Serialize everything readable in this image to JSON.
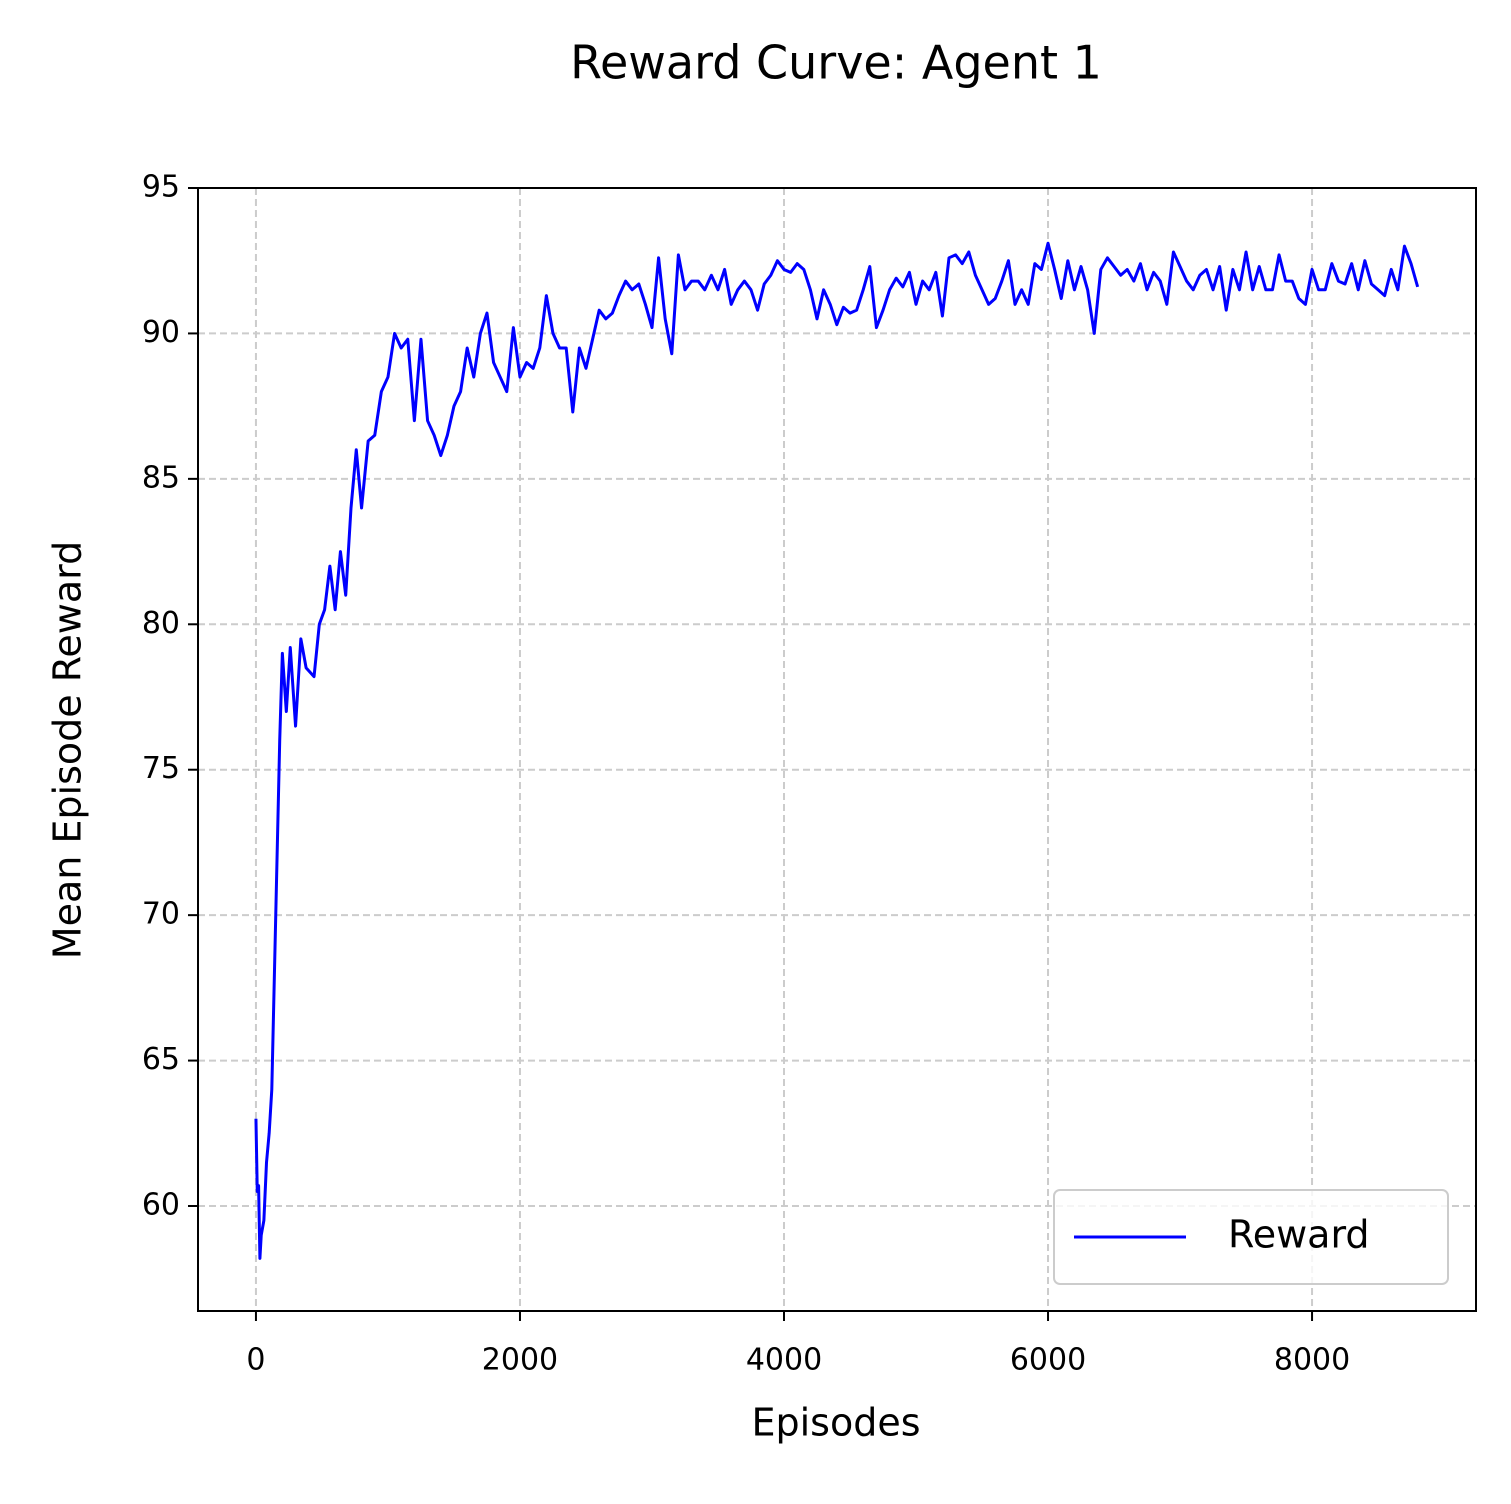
{
  "chart_data": {
    "type": "line",
    "title": "Reward Curve: Agent 1",
    "xlabel": "Episodes",
    "ylabel": "Mean Episode Reward",
    "x": [
      0,
      10,
      20,
      30,
      40,
      60,
      80,
      100,
      120,
      140,
      160,
      180,
      200,
      230,
      260,
      300,
      340,
      380,
      440,
      480,
      520,
      560,
      600,
      640,
      680,
      720,
      760,
      800,
      850,
      900,
      950,
      1000,
      1050,
      1100,
      1150,
      1200,
      1250,
      1300,
      1350,
      1400,
      1450,
      1500,
      1550,
      1600,
      1650,
      1700,
      1750,
      1800,
      1850,
      1900,
      1950,
      2000,
      2050,
      2100,
      2150,
      2200,
      2250,
      2300,
      2350,
      2400,
      2450,
      2500,
      2550,
      2600,
      2650,
      2700,
      2750,
      2800,
      2850,
      2900,
      2950,
      3000,
      3050,
      3100,
      3150,
      3200,
      3250,
      3300,
      3350,
      3400,
      3450,
      3500,
      3550,
      3600,
      3650,
      3700,
      3750,
      3800,
      3850,
      3900,
      3950,
      4000,
      4050,
      4100,
      4150,
      4200,
      4250,
      4300,
      4350,
      4400,
      4450,
      4500,
      4550,
      4600,
      4650,
      4700,
      4750,
      4800,
      4850,
      4900,
      4950,
      5000,
      5050,
      5100,
      5150,
      5200,
      5250,
      5300,
      5350,
      5400,
      5450,
      5500,
      5550,
      5600,
      5650,
      5700,
      5750,
      5800,
      5850,
      5900,
      5950,
      6000,
      6050,
      6100,
      6150,
      6200,
      6250,
      6300,
      6350,
      6400,
      6450,
      6500,
      6550,
      6600,
      6650,
      6700,
      6750,
      6800,
      6850,
      6900,
      6950,
      7000,
      7050,
      7100,
      7150,
      7200,
      7250,
      7300,
      7350,
      7400,
      7450,
      7500,
      7550,
      7600,
      7650,
      7700,
      7750,
      7800,
      7850,
      7900,
      7950,
      8000,
      8050,
      8100,
      8150,
      8200,
      8250,
      8300,
      8350,
      8400,
      8450,
      8500,
      8550,
      8600,
      8650,
      8700,
      8750,
      8800
    ],
    "series": [
      {
        "name": "Reward",
        "color": "#0000ff",
        "values": [
          63,
          60.5,
          60.7,
          58.2,
          59,
          59.5,
          61.5,
          62.5,
          64,
          68,
          72,
          76,
          79,
          77,
          79.2,
          76.5,
          79.5,
          78.5,
          78.2,
          80,
          80.5,
          82,
          80.5,
          82.5,
          81,
          84,
          86,
          84,
          86.3,
          86.5,
          88,
          88.5,
          90,
          89.5,
          89.8,
          87,
          89.8,
          87,
          86.5,
          85.8,
          86.5,
          87.5,
          88,
          89.5,
          88.5,
          90,
          90.7,
          89,
          88.5,
          88,
          90.2,
          88.5,
          89,
          88.8,
          89.5,
          91.3,
          90,
          89.5,
          89.5,
          87.3,
          89.5,
          88.8,
          89.8,
          90.8,
          90.5,
          90.7,
          91.3,
          91.8,
          91.5,
          91.7,
          91,
          90.2,
          92.6,
          90.5,
          89.3,
          92.7,
          91.5,
          91.8,
          91.8,
          91.5,
          92,
          91.5,
          92.2,
          91,
          91.5,
          91.8,
          91.5,
          90.8,
          91.7,
          92,
          92.5,
          92.2,
          92.1,
          92.4,
          92.2,
          91.5,
          90.5,
          91.5,
          91,
          90.3,
          90.9,
          90.7,
          90.8,
          91.5,
          92.3,
          90.2,
          90.8,
          91.5,
          91.9,
          91.6,
          92.1,
          91,
          91.8,
          91.5,
          92.1,
          90.6,
          92.6,
          92.7,
          92.4,
          92.8,
          92,
          91.5,
          91,
          91.2,
          91.8,
          92.5,
          91,
          91.5,
          91,
          92.4,
          92.2,
          93.1,
          92.2,
          91.2,
          92.5,
          91.5,
          92.3,
          91.5,
          90,
          92.2,
          92.6,
          92.3,
          92,
          92.2,
          91.8,
          92.4,
          91.5,
          92.1,
          91.8,
          91,
          92.8,
          92.3,
          91.8,
          91.5,
          92,
          92.2,
          91.5,
          92.3,
          90.8,
          92.2,
          91.5,
          92.8,
          91.5,
          92.3,
          91.5,
          91.5,
          92.7,
          91.8,
          91.8,
          91.2,
          91,
          92.2,
          91.5,
          91.5,
          92.4,
          91.8,
          91.7,
          92.4,
          91.5,
          92.5,
          91.7,
          91.5,
          91.3,
          92.2,
          91.5,
          93,
          92.4,
          91.6
        ]
      }
    ],
    "xlim": [
      -439,
      9242
    ],
    "xticks": [
      0,
      2000,
      4000,
      6000,
      8000
    ],
    "ylim": [
      56.39,
      95
    ],
    "yticks": [
      60,
      65,
      70,
      75,
      80,
      85,
      90,
      95
    ],
    "grid": true,
    "legend": "lower right"
  }
}
